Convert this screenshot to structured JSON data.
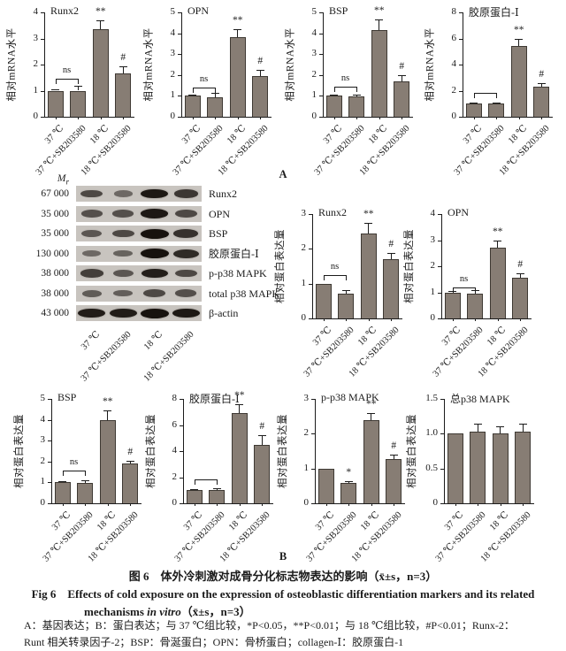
{
  "figure": {
    "section_a_label": "A",
    "section_b_label": "B",
    "caption_cn": "图 6　体外冷刺激对成骨分化标志物表达的影响（x̄±s，n=3）",
    "caption_en_line1": "Fig 6　Effects of cold exposure on the expression of osteoblastic differentiation markers and its related",
    "caption_en_line2_pre": "mechanisms ",
    "caption_en_line2_italic": "in vitro",
    "caption_en_line2_post": "（x̄±s，n=3）",
    "footnote_line1": "A：基因表达；B：蛋白表达；与 37 ℃组比较，*P<0.05，**P<0.01；与 18 ℃组比较，#P<0.01；Runx-2：",
    "footnote_line2": "Runt 相关转录因子-2；BSP：骨涎蛋白；OPN：骨桥蛋白；collagen-Ⅰ：胶原蛋白-1"
  },
  "colors": {
    "bar": "#877d74",
    "bar_border": "#3e3933",
    "axis": "#1b1b1b",
    "blot_strip": "#c8c4bf",
    "band": "#17120e"
  },
  "categories": [
    "37 ℃",
    "37 ℃+SB203580",
    "18 ℃",
    "18 ℃+SB203580"
  ],
  "chart_data": [
    {
      "id": "mrna-runx2",
      "type": "bar",
      "title": "Runx2",
      "ylabel": "相对mRNA水平",
      "ylim": [
        0,
        4
      ],
      "yticks": [
        "0",
        "1",
        "2",
        "3",
        "4"
      ],
      "values": [
        1.0,
        1.0,
        3.35,
        1.65
      ],
      "errors": [
        0.06,
        0.18,
        0.35,
        0.28
      ],
      "sig": [
        "",
        "",
        "**",
        "#"
      ],
      "bracket": {
        "from": 0,
        "to": 1,
        "label": "ns",
        "y": 1.45
      }
    },
    {
      "id": "mrna-opn",
      "type": "bar",
      "title": "OPN",
      "ylabel": "相对mRNA水平",
      "ylim": [
        0,
        5
      ],
      "yticks": [
        "0",
        "1",
        "2",
        "3",
        "4",
        "5"
      ],
      "values": [
        1.0,
        0.95,
        3.8,
        1.95
      ],
      "errors": [
        0.06,
        0.2,
        0.4,
        0.3
      ],
      "sig": [
        "",
        "",
        "**",
        "#"
      ],
      "bracket": {
        "from": 0,
        "to": 1,
        "label": "ns",
        "y": 1.4
      }
    },
    {
      "id": "mrna-bsp",
      "type": "bar",
      "title": "BSP",
      "ylabel": "相对mRNA水平",
      "ylim": [
        0,
        5
      ],
      "yticks": [
        "0",
        "1",
        "2",
        "3",
        "4",
        "5"
      ],
      "values": [
        1.0,
        0.97,
        4.15,
        1.7
      ],
      "errors": [
        0.04,
        0.08,
        0.5,
        0.3
      ],
      "sig": [
        "",
        "",
        "**",
        "#"
      ],
      "bracket": {
        "from": 0,
        "to": 1,
        "label": "ns",
        "y": 1.45
      }
    },
    {
      "id": "mrna-collagen1",
      "type": "bar",
      "title": "胶原蛋白-Ⅰ",
      "ylabel": "相对mRNA水平",
      "ylim": [
        0,
        8
      ],
      "yticks": [
        "0",
        "2",
        "4",
        "6",
        "8"
      ],
      "values": [
        1.0,
        1.0,
        5.4,
        2.3
      ],
      "errors": [
        0.06,
        0.1,
        0.6,
        0.3
      ],
      "sig": [
        "",
        "",
        "**",
        "#"
      ],
      "bracket": {
        "from": 0,
        "to": 1,
        "label": "",
        "y": 1.8
      }
    },
    {
      "id": "protein-runx2",
      "type": "bar",
      "title": "Runx2",
      "ylabel": "相对蛋白表达量",
      "ylim": [
        0,
        3
      ],
      "yticks": [
        "0",
        "1",
        "2",
        "3"
      ],
      "values": [
        1.0,
        0.7,
        2.45,
        1.7
      ],
      "errors": [
        0,
        0.12,
        0.3,
        0.18
      ],
      "sig": [
        "",
        "",
        "**",
        "#"
      ],
      "bracket": {
        "from": 0,
        "to": 1,
        "label": "ns",
        "y": 1.25
      }
    },
    {
      "id": "protein-opn",
      "type": "bar",
      "title": "OPN",
      "ylabel": "相对蛋白表达量",
      "ylim": [
        0,
        4
      ],
      "yticks": [
        "0",
        "1",
        "2",
        "3",
        "4"
      ],
      "values": [
        1.0,
        0.95,
        2.7,
        1.55
      ],
      "errors": [
        0.04,
        0.13,
        0.3,
        0.18
      ],
      "sig": [
        "",
        "",
        "**",
        "#"
      ],
      "bracket": {
        "from": 0,
        "to": 1,
        "label": "ns",
        "y": 1.2
      }
    },
    {
      "id": "protein-bsp",
      "type": "bar",
      "title": "BSP",
      "ylabel": "相对蛋白表达量",
      "ylim": [
        0,
        5
      ],
      "yticks": [
        "0",
        "1",
        "2",
        "3",
        "4",
        "5"
      ],
      "values": [
        1.0,
        0.97,
        4.0,
        1.9
      ],
      "errors": [
        0.05,
        0.15,
        0.45,
        0.12
      ],
      "sig": [
        "",
        "",
        "**",
        "#"
      ],
      "bracket": {
        "from": 0,
        "to": 1,
        "label": "ns",
        "y": 1.55
      }
    },
    {
      "id": "protein-collagen1",
      "type": "bar",
      "title": "胶原蛋白-Ⅰ",
      "ylabel": "相对蛋白表达量",
      "ylim": [
        0,
        8
      ],
      "yticks": [
        "0",
        "2",
        "4",
        "6",
        "8"
      ],
      "values": [
        1.0,
        1.05,
        6.9,
        4.5
      ],
      "errors": [
        0.07,
        0.08,
        0.7,
        0.75
      ],
      "sig": [
        "",
        "",
        "**",
        "#"
      ],
      "bracket": {
        "from": 0,
        "to": 1,
        "label": "",
        "y": 1.8
      }
    },
    {
      "id": "protein-pp38",
      "type": "bar",
      "title": "p-p38 MAPK",
      "ylabel": "相对蛋白表达量",
      "ylim": [
        0,
        3
      ],
      "yticks": [
        "0",
        "1",
        "2",
        "3"
      ],
      "values": [
        1.0,
        0.58,
        2.38,
        1.28
      ],
      "errors": [
        0,
        0.05,
        0.22,
        0.13
      ],
      "sig": [
        "",
        "*",
        "**",
        "#"
      ],
      "bracket": null
    },
    {
      "id": "protein-totalp38",
      "type": "bar",
      "title": "总p38 MAPK",
      "ylabel": "相对蛋白表达量",
      "ylim": [
        0,
        1.5
      ],
      "yticks": [
        "0",
        "0.5",
        "1.0",
        "1.5"
      ],
      "values": [
        1.0,
        1.03,
        1.0,
        1.03
      ],
      "errors": [
        0,
        0.12,
        0.1,
        0.12
      ],
      "sig": [
        "",
        "",
        "",
        ""
      ],
      "bracket": null
    }
  ],
  "blot": {
    "mr_header_main": "M",
    "mr_header_sub": "r",
    "rows": [
      {
        "mr": "67 000",
        "label": "Runx2",
        "bands": [
          0.55,
          0.3,
          0.95,
          0.7
        ]
      },
      {
        "mr": "35 000",
        "label": "OPN",
        "bands": [
          0.5,
          0.5,
          0.95,
          0.55
        ]
      },
      {
        "mr": "35 000",
        "label": "BSP",
        "bands": [
          0.45,
          0.55,
          1.0,
          0.75
        ]
      },
      {
        "mr": "130 000",
        "label": "胶原蛋白-Ⅰ",
        "bands": [
          0.3,
          0.35,
          1.0,
          0.8
        ]
      },
      {
        "mr": "38 000",
        "label": "p-p38 MAPK",
        "bands": [
          0.65,
          0.45,
          0.9,
          0.55
        ]
      },
      {
        "mr": "38 000",
        "label": "total p38 MAPK",
        "bands": [
          0.4,
          0.38,
          0.55,
          0.5
        ]
      },
      {
        "mr": "43 000",
        "label": "β-actin",
        "bands": [
          0.92,
          0.92,
          1.0,
          0.95
        ]
      }
    ]
  }
}
